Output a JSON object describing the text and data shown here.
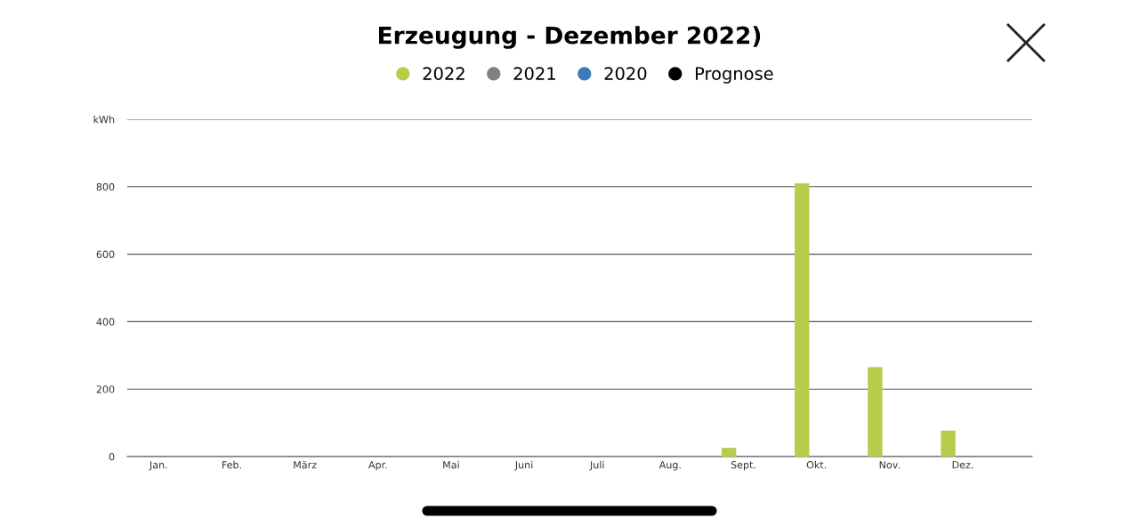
{
  "chart_data": {
    "type": "bar",
    "title": "Erzeugung - Dezember 2022)",
    "categories": [
      "Jan.",
      "Feb.",
      "März",
      "Apr.",
      "Mai",
      "Juni",
      "Juli",
      "Aug.",
      "Sept.",
      "Okt.",
      "Nov.",
      "Dez."
    ],
    "series": [
      {
        "name": "2022",
        "color": "#b8cc4c",
        "values": [
          null,
          null,
          null,
          null,
          null,
          null,
          null,
          null,
          26,
          810,
          265,
          77
        ]
      },
      {
        "name": "2021",
        "color": "#808080",
        "values": [
          null,
          null,
          null,
          null,
          null,
          null,
          null,
          null,
          null,
          null,
          null,
          null
        ]
      },
      {
        "name": "2020",
        "color": "#3d7ab8",
        "values": [
          null,
          null,
          null,
          null,
          null,
          null,
          null,
          null,
          null,
          null,
          null,
          null
        ]
      },
      {
        "name": "Prognose",
        "color": "#000000",
        "values": [
          null,
          null,
          null,
          null,
          null,
          null,
          null,
          null,
          null,
          null,
          null,
          null
        ]
      }
    ],
    "ylim": [
      0,
      1000
    ],
    "yticks": [
      0,
      200,
      400,
      600,
      800,
      {
        "value": 1000,
        "label": "kWh"
      }
    ],
    "grid": "y",
    "legend": "top"
  }
}
